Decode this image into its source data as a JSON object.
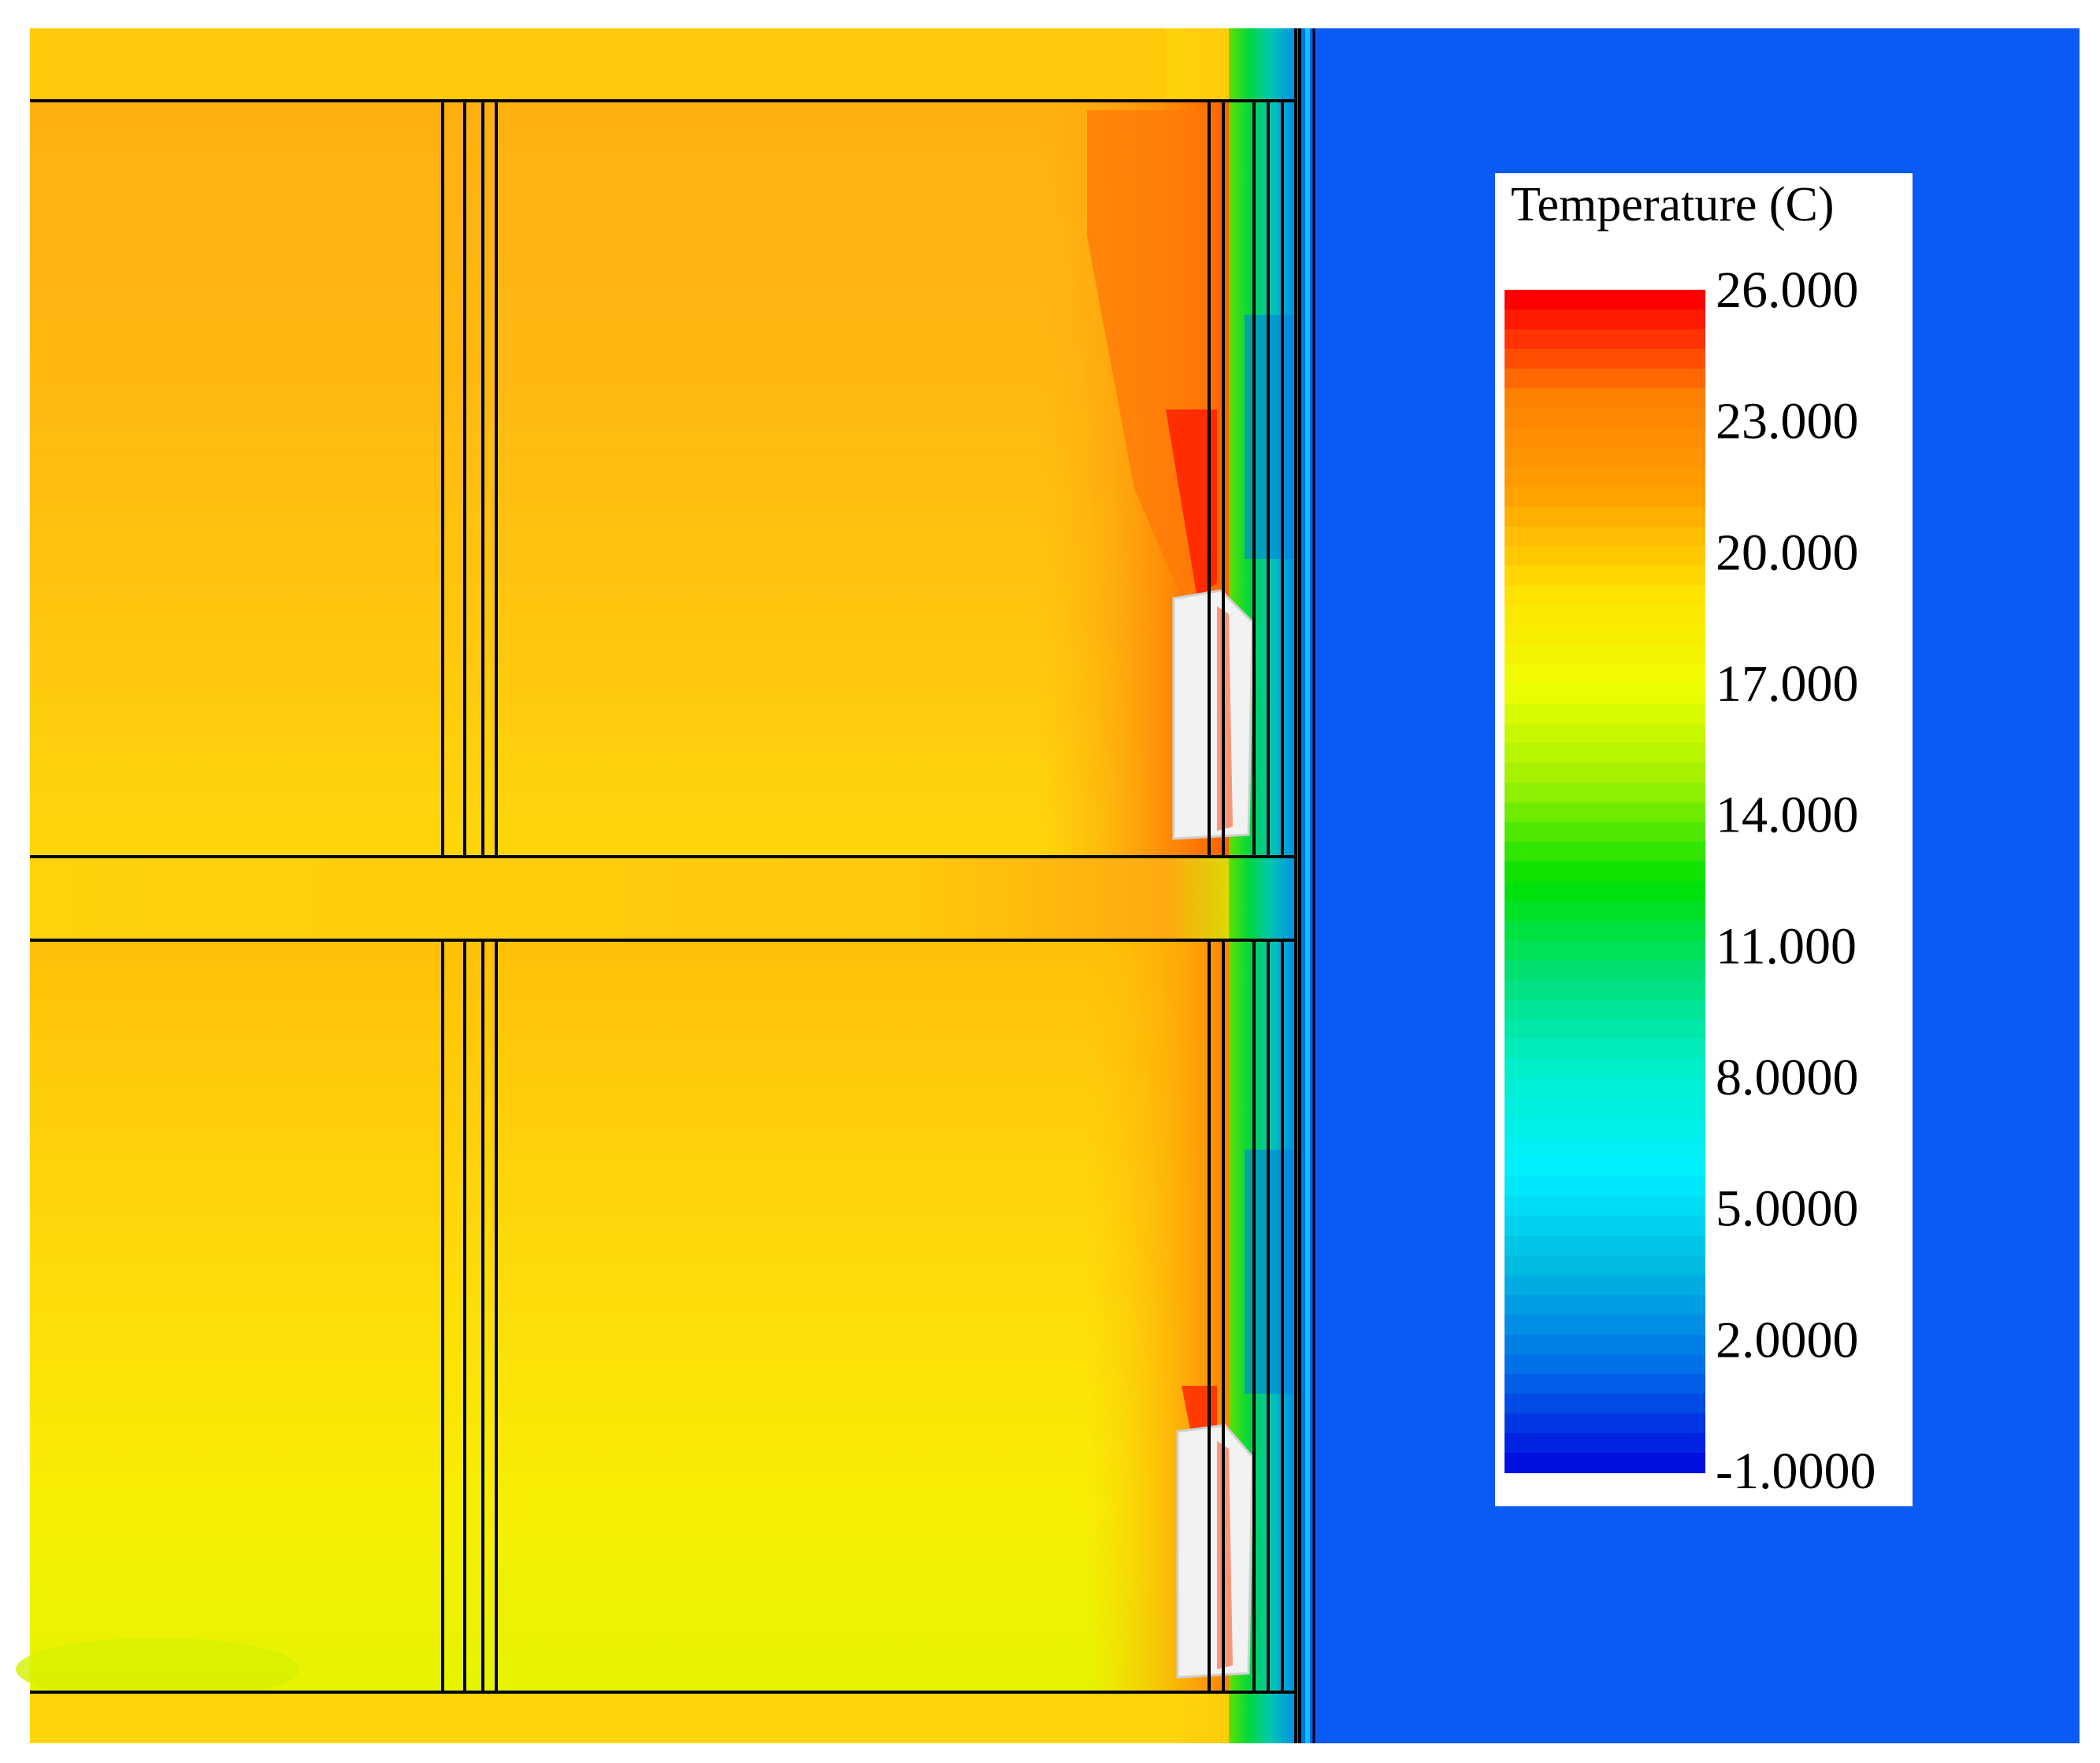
{
  "legend": {
    "title": "Temperature (C)",
    "tick_labels": [
      "26.000",
      "23.000",
      "20.000",
      "17.000",
      "14.000",
      "11.000",
      "8.0000",
      "5.0000",
      "2.0000",
      "-1.0000"
    ],
    "colors": [
      "#ff0000",
      "#ff8000",
      "#ffa000",
      "#ffe000",
      "#f0ff00",
      "#9cf000",
      "#00e000",
      "#00e07a",
      "#00f0d0",
      "#00f0ff",
      "#00b8e0",
      "#0070e8",
      "#0010e0"
    ]
  },
  "colors": {
    "outdoor": "#0a5af5",
    "room_warm": "#ffb20a",
    "room_mid": "#ffc80a",
    "room_cool": "#f6f000",
    "hot_wall": "#ff5a00",
    "window_white": "#f2f2f2"
  }
}
